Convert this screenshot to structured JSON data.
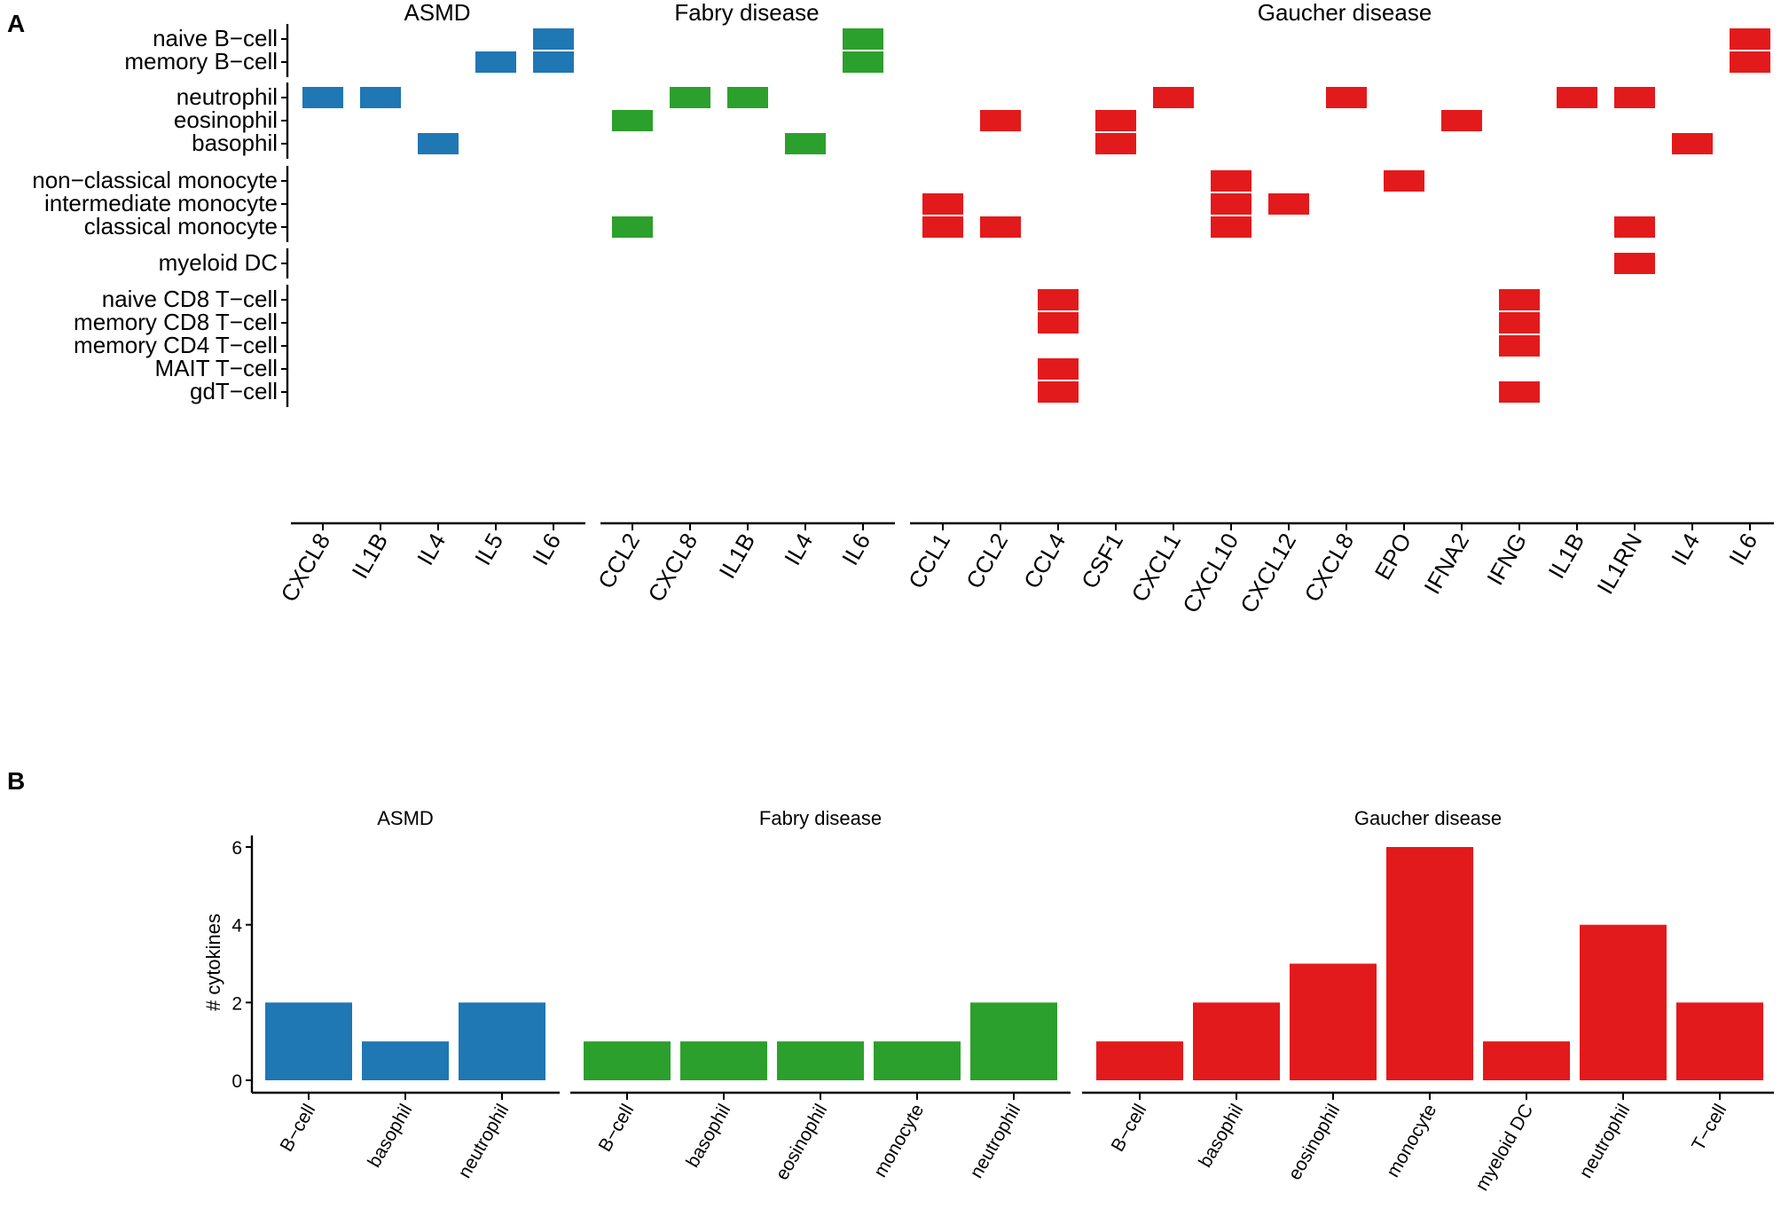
{
  "panel_a_label": "A",
  "panel_b_label": "B",
  "colors": {
    "ASMD": "#1f77b4",
    "Fabry disease": "#2ca02c",
    "Gaucher disease": "#e31a1c"
  },
  "chart_data": [
    {
      "type": "heatmap",
      "panel": "A",
      "title": "",
      "xlabel": "",
      "ylabel": "",
      "rows": [
        "naive B−cell",
        "memory B−cell",
        "neutrophil",
        "eosinophil",
        "basophil",
        "non−classical monocyte",
        "intermediate monocyte",
        "classical monocyte",
        "myeloid DC",
        "naive CD8 T−cell",
        "memory CD8 T−cell",
        "memory CD4 T−cell",
        "MAIT T−cell",
        "gdT−cell"
      ],
      "row_groups": [
        [
          0,
          1
        ],
        [
          2,
          4
        ],
        [
          5,
          7
        ],
        [
          8,
          8
        ],
        [
          9,
          13
        ]
      ],
      "facets": [
        {
          "name": "ASMD",
          "columns": [
            "CXCL8",
            "IL1B",
            "IL4",
            "IL5",
            "IL6"
          ],
          "cells": [
            [
              "neutrophil",
              "CXCL8"
            ],
            [
              "neutrophil",
              "IL1B"
            ],
            [
              "basophil",
              "IL4"
            ],
            [
              "memory B−cell",
              "IL5"
            ],
            [
              "naive B−cell",
              "IL6"
            ],
            [
              "memory B−cell",
              "IL6"
            ]
          ]
        },
        {
          "name": "Fabry disease",
          "columns": [
            "CCL2",
            "CXCL8",
            "IL1B",
            "IL4",
            "IL6"
          ],
          "cells": [
            [
              "eosinophil",
              "CCL2"
            ],
            [
              "classical monocyte",
              "CCL2"
            ],
            [
              "neutrophil",
              "CXCL8"
            ],
            [
              "neutrophil",
              "IL1B"
            ],
            [
              "basophil",
              "IL4"
            ],
            [
              "naive B−cell",
              "IL6"
            ],
            [
              "memory B−cell",
              "IL6"
            ]
          ]
        },
        {
          "name": "Gaucher disease",
          "columns": [
            "CCL1",
            "CCL2",
            "CCL4",
            "CSF1",
            "CXCL1",
            "CXCL10",
            "CXCL12",
            "CXCL8",
            "EPO",
            "IFNA2",
            "IFNG",
            "IL1B",
            "IL1RN",
            "IL4",
            "IL6"
          ],
          "cells": [
            [
              "intermediate monocyte",
              "CCL1"
            ],
            [
              "classical monocyte",
              "CCL1"
            ],
            [
              "eosinophil",
              "CCL2"
            ],
            [
              "classical monocyte",
              "CCL2"
            ],
            [
              "naive CD8 T−cell",
              "CCL4"
            ],
            [
              "memory CD8 T−cell",
              "CCL4"
            ],
            [
              "MAIT T−cell",
              "CCL4"
            ],
            [
              "gdT−cell",
              "CCL4"
            ],
            [
              "eosinophil",
              "CSF1"
            ],
            [
              "basophil",
              "CSF1"
            ],
            [
              "neutrophil",
              "CXCL1"
            ],
            [
              "non−classical monocyte",
              "CXCL10"
            ],
            [
              "intermediate monocyte",
              "CXCL10"
            ],
            [
              "classical monocyte",
              "CXCL10"
            ],
            [
              "intermediate monocyte",
              "CXCL12"
            ],
            [
              "neutrophil",
              "CXCL8"
            ],
            [
              "non−classical monocyte",
              "EPO"
            ],
            [
              "eosinophil",
              "IFNA2"
            ],
            [
              "naive CD8 T−cell",
              "IFNG"
            ],
            [
              "memory CD8 T−cell",
              "IFNG"
            ],
            [
              "memory CD4 T−cell",
              "IFNG"
            ],
            [
              "gdT−cell",
              "IFNG"
            ],
            [
              "neutrophil",
              "IL1B"
            ],
            [
              "neutrophil",
              "IL1RN"
            ],
            [
              "classical monocyte",
              "IL1RN"
            ],
            [
              "myeloid DC",
              "IL1RN"
            ],
            [
              "basophil",
              "IL4"
            ],
            [
              "naive B−cell",
              "IL6"
            ],
            [
              "memory B−cell",
              "IL6"
            ]
          ]
        }
      ]
    },
    {
      "type": "bar",
      "panel": "B",
      "title": "",
      "xlabel": "",
      "ylabel": "# cytokines",
      "ylim": [
        0,
        6
      ],
      "yticks": [
        0,
        2,
        4,
        6
      ],
      "facets": [
        {
          "name": "ASMD",
          "categories": [
            "B−cell",
            "basophil",
            "neutrophil"
          ],
          "values": [
            2,
            1,
            2
          ]
        },
        {
          "name": "Fabry disease",
          "categories": [
            "B−cell",
            "basophil",
            "eosinophil",
            "monocyte",
            "neutrophil"
          ],
          "values": [
            1,
            1,
            1,
            1,
            2
          ]
        },
        {
          "name": "Gaucher disease",
          "categories": [
            "B−cell",
            "basophil",
            "eosinophil",
            "monocyte",
            "myeloid DC",
            "neutrophil",
            "T−cell"
          ],
          "values": [
            1,
            2,
            3,
            6,
            1,
            4,
            2
          ]
        }
      ]
    }
  ]
}
